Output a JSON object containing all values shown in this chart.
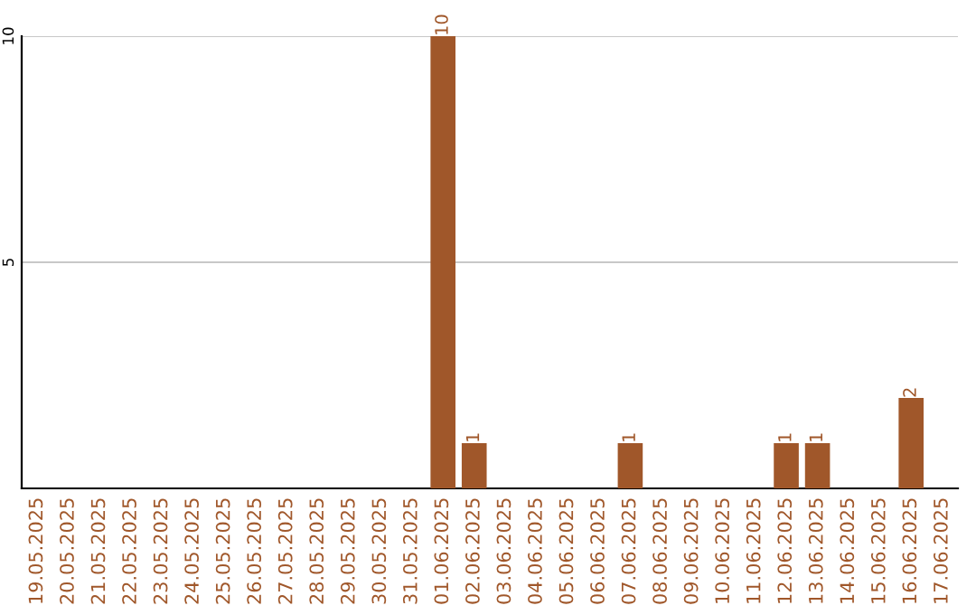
{
  "chart_data": {
    "type": "bar",
    "categories": [
      "19.05.2025",
      "20.05.2025",
      "21.05.2025",
      "22.05.2025",
      "23.05.2025",
      "24.05.2025",
      "25.05.2025",
      "26.05.2025",
      "27.05.2025",
      "28.05.2025",
      "29.05.2025",
      "30.05.2025",
      "31.05.2025",
      "01.06.2025",
      "02.06.2025",
      "03.06.2025",
      "04.06.2025",
      "05.06.2025",
      "06.06.2025",
      "07.06.2025",
      "08.06.2025",
      "09.06.2025",
      "10.06.2025",
      "11.06.2025",
      "12.06.2025",
      "13.06.2025",
      "14.06.2025",
      "15.06.2025",
      "16.06.2025",
      "17.06.2025"
    ],
    "values": [
      0,
      0,
      0,
      0,
      0,
      0,
      0,
      0,
      0,
      0,
      0,
      0,
      0,
      10,
      1,
      0,
      0,
      0,
      0,
      1,
      0,
      0,
      0,
      0,
      1,
      1,
      0,
      0,
      2,
      0
    ],
    "value_labels": [
      null,
      null,
      null,
      null,
      null,
      null,
      null,
      null,
      null,
      null,
      null,
      null,
      null,
      "10",
      "1",
      null,
      null,
      null,
      null,
      "1",
      null,
      null,
      null,
      null,
      "1",
      "1",
      null,
      null,
      "2",
      null
    ],
    "color": "#a0572a",
    "ylim": [
      0,
      10
    ],
    "yticks": [
      5,
      10
    ],
    "grid": "y"
  }
}
